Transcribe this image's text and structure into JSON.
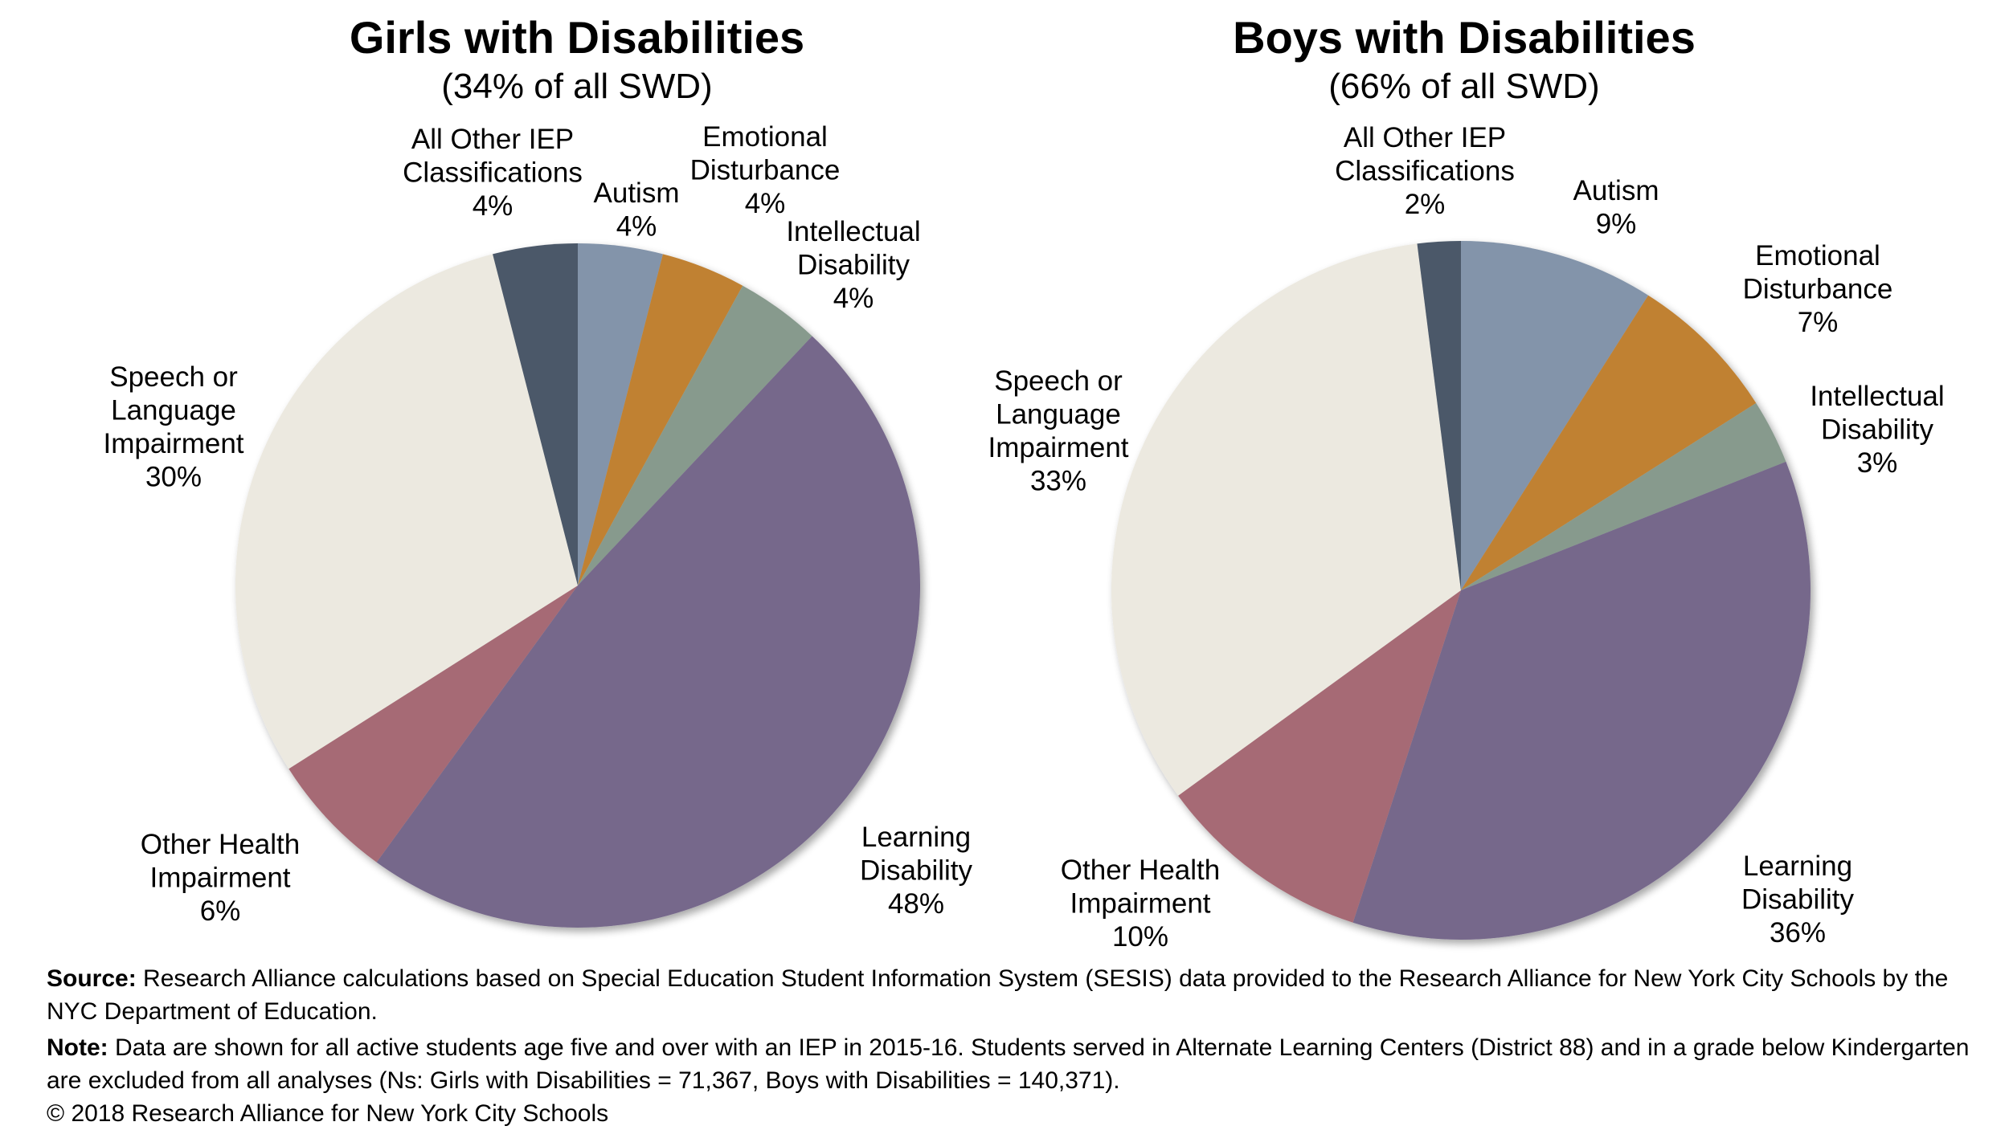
{
  "chart_data": [
    {
      "type": "pie",
      "title": "Girls with Disabilities",
      "subtitle": "(34% of all SWD)",
      "start": "12 o'clock",
      "direction": "clockwise",
      "slices": [
        {
          "key": "autism",
          "label": [
            "Autism"
          ],
          "value": 4,
          "display": "4%",
          "color": "#8394AA"
        },
        {
          "key": "emotional",
          "label": [
            "Emotional",
            "Disturbance"
          ],
          "value": 4,
          "display": "4%",
          "color": "#C08133"
        },
        {
          "key": "intellectual",
          "label": [
            "Intellectual",
            "Disability"
          ],
          "value": 4,
          "display": "4%",
          "color": "#879A8D"
        },
        {
          "key": "learning",
          "label": [
            "Learning",
            "Disability"
          ],
          "value": 48,
          "display": "48%",
          "color": "#76688B"
        },
        {
          "key": "other-health",
          "label": [
            "Other Health",
            "Impairment"
          ],
          "value": 6,
          "display": "6%",
          "color": "#A66A74"
        },
        {
          "key": "speech",
          "label": [
            "Speech or",
            "Language",
            "Impairment"
          ],
          "value": 30,
          "display": "30%",
          "color": "#ECE9E0"
        },
        {
          "key": "all-other",
          "label": [
            "All Other IEP",
            "Classifications"
          ],
          "value": 4,
          "display": "4%",
          "color": "#4B5869"
        }
      ]
    },
    {
      "type": "pie",
      "title": "Boys with Disabilities",
      "subtitle": "(66% of all SWD)",
      "start": "12 o'clock",
      "direction": "clockwise",
      "slices": [
        {
          "key": "autism",
          "label": [
            "Autism"
          ],
          "value": 9,
          "display": "9%",
          "color": "#8394AA"
        },
        {
          "key": "emotional",
          "label": [
            "Emotional",
            "Disturbance"
          ],
          "value": 7,
          "display": "7%",
          "color": "#C08133"
        },
        {
          "key": "intellectual",
          "label": [
            "Intellectual",
            "Disability"
          ],
          "value": 3,
          "display": "3%",
          "color": "#879A8D"
        },
        {
          "key": "learning",
          "label": [
            "Learning",
            "Disability"
          ],
          "value": 36,
          "display": "36%",
          "color": "#76688B"
        },
        {
          "key": "other-health",
          "label": [
            "Other Health",
            "Impairment"
          ],
          "value": 10,
          "display": "10%",
          "color": "#A66A74"
        },
        {
          "key": "speech",
          "label": [
            "Speech or",
            "Language",
            "Impairment"
          ],
          "value": 33,
          "display": "33%",
          "color": "#ECE9E0"
        },
        {
          "key": "all-other",
          "label": [
            "All Other IEP",
            "Classifications"
          ],
          "value": 2,
          "display": "2%",
          "color": "#4B5869"
        }
      ]
    }
  ],
  "footer": {
    "source_label": "Source:",
    "source_text": " Research Alliance calculations based on Special Education Student Information System (SESIS) data provided to the Research Alliance for New York City Schools by the NYC Department of Education.",
    "note_label": "Note:",
    "note_text": " Data are shown for all active students age five and over with an IEP in 2015-16. Students served in Alternate Learning Centers (District 88) and in a grade below Kindergarten are excluded from all analyses (Ns: Girls with Disabilities = 71,367, Boys with Disabilities = 140,371).",
    "copyright": "© 2018 Research Alliance for New York City Schools"
  }
}
